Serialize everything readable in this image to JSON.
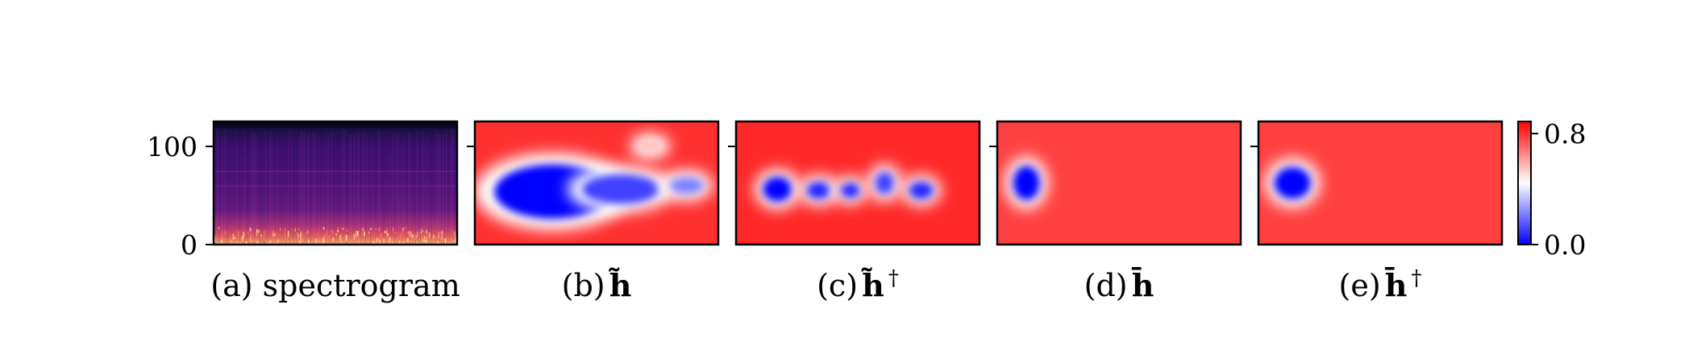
{
  "chart_data": [
    {
      "type": "heatmap",
      "panel": "a",
      "caption": "(a) spectrogram",
      "colormap": "magma",
      "ytick_labels": [
        "0",
        "100"
      ],
      "ylim": [
        0,
        128
      ]
    },
    {
      "type": "heatmap",
      "panel": "b",
      "caption_prefix": "(b)",
      "caption_symbol": "h̃",
      "caption_sup": "",
      "colormap": "bwr",
      "regions": [
        {
          "shape": "blob",
          "cx": 0.32,
          "cy": 0.57,
          "rx": 0.24,
          "ry": 0.22,
          "value": 0.0
        },
        {
          "shape": "blob",
          "cx": 0.6,
          "cy": 0.55,
          "rx": 0.16,
          "ry": 0.12,
          "value": 0.1
        },
        {
          "shape": "blob",
          "cx": 0.87,
          "cy": 0.52,
          "rx": 0.07,
          "ry": 0.07,
          "value": 0.2
        },
        {
          "shape": "blob",
          "cx": 0.72,
          "cy": 0.2,
          "rx": 0.05,
          "ry": 0.05,
          "value": 0.5
        }
      ]
    },
    {
      "type": "heatmap",
      "panel": "c",
      "caption_prefix": "(c)",
      "caption_symbol": "h̃",
      "caption_sup": "†",
      "colormap": "bwr",
      "regions": [
        {
          "shape": "blob",
          "cx": 0.17,
          "cy": 0.55,
          "rx": 0.06,
          "ry": 0.1,
          "value": 0.0
        },
        {
          "shape": "blob",
          "cx": 0.34,
          "cy": 0.56,
          "rx": 0.05,
          "ry": 0.07,
          "value": 0.05
        },
        {
          "shape": "blob",
          "cx": 0.47,
          "cy": 0.56,
          "rx": 0.04,
          "ry": 0.06,
          "value": 0.05
        },
        {
          "shape": "blob",
          "cx": 0.61,
          "cy": 0.5,
          "rx": 0.04,
          "ry": 0.09,
          "value": 0.1
        },
        {
          "shape": "blob",
          "cx": 0.76,
          "cy": 0.56,
          "rx": 0.05,
          "ry": 0.07,
          "value": 0.05
        }
      ]
    },
    {
      "type": "heatmap",
      "panel": "d",
      "caption_prefix": "(d)",
      "caption_symbol": "h̄",
      "caption_sup": "",
      "colormap": "bwr",
      "regions": [
        {
          "shape": "blob",
          "cx": 0.12,
          "cy": 0.5,
          "rx": 0.055,
          "ry": 0.14,
          "value": 0.0
        }
      ]
    },
    {
      "type": "heatmap",
      "panel": "e",
      "caption_prefix": "(e)",
      "caption_symbol": "h̄",
      "caption_sup": "†",
      "colormap": "bwr",
      "regions": [
        {
          "shape": "blob",
          "cx": 0.14,
          "cy": 0.5,
          "rx": 0.075,
          "ry": 0.13,
          "value": 0.0
        }
      ]
    }
  ],
  "colorbar": {
    "ticks": [
      "0.0",
      "0.8"
    ],
    "range": [
      0.0,
      0.8
    ],
    "colors": {
      "low": "#0000ff",
      "mid": "#ffffff",
      "high": "#ff0000"
    }
  },
  "background_value": 0.8
}
